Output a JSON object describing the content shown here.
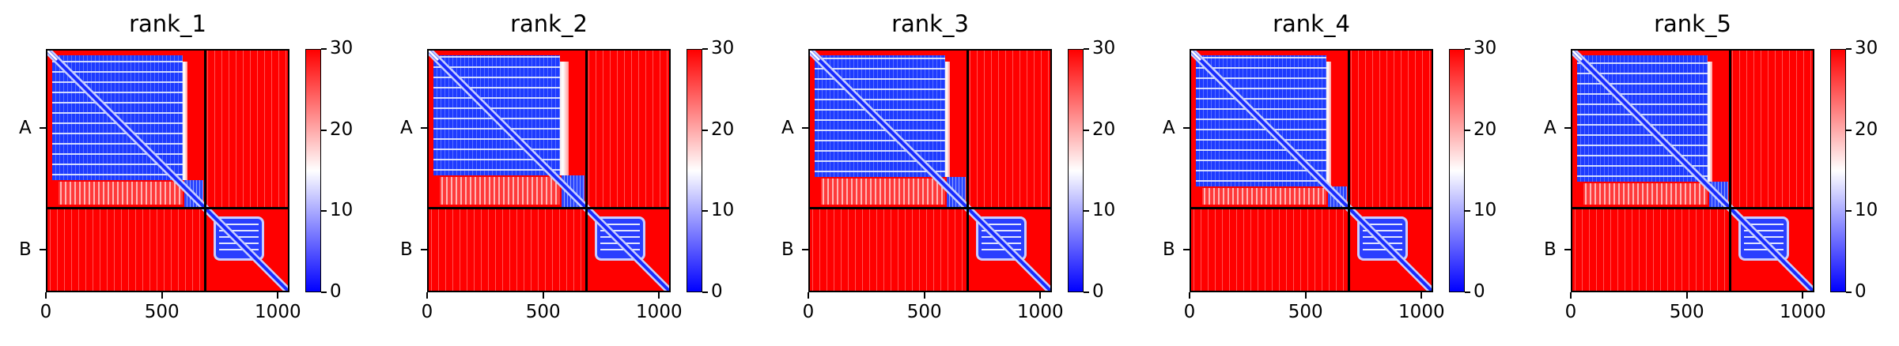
{
  "chart_data": [
    {
      "type": "heatmap",
      "title": "rank_1",
      "ytick_labels": [
        "A",
        "B"
      ],
      "xticks": [
        0,
        500,
        1000
      ],
      "xlim": [
        0,
        1050
      ],
      "chain_boundary": 680,
      "colorbar": {
        "ticks": [
          0,
          10,
          20,
          30
        ],
        "range": [
          0,
          30
        ],
        "colormap": "bwr"
      }
    },
    {
      "type": "heatmap",
      "title": "rank_2",
      "ytick_labels": [
        "A",
        "B"
      ],
      "xticks": [
        0,
        500,
        1000
      ],
      "xlim": [
        0,
        1050
      ],
      "chain_boundary": 680,
      "colorbar": {
        "ticks": [
          0,
          10,
          20,
          30
        ],
        "range": [
          0,
          30
        ],
        "colormap": "bwr"
      }
    },
    {
      "type": "heatmap",
      "title": "rank_3",
      "ytick_labels": [
        "A",
        "B"
      ],
      "xticks": [
        0,
        500,
        1000
      ],
      "xlim": [
        0,
        1050
      ],
      "chain_boundary": 680,
      "colorbar": {
        "ticks": [
          0,
          10,
          20,
          30
        ],
        "range": [
          0,
          30
        ],
        "colormap": "bwr"
      }
    },
    {
      "type": "heatmap",
      "title": "rank_4",
      "ytick_labels": [
        "A",
        "B"
      ],
      "xticks": [
        0,
        500,
        1000
      ],
      "xlim": [
        0,
        1050
      ],
      "chain_boundary": 680,
      "colorbar": {
        "ticks": [
          0,
          10,
          20,
          30
        ],
        "range": [
          0,
          30
        ],
        "colormap": "bwr"
      }
    },
    {
      "type": "heatmap",
      "title": "rank_5",
      "ytick_labels": [
        "A",
        "B"
      ],
      "xticks": [
        0,
        500,
        1000
      ],
      "xlim": [
        0,
        1050
      ],
      "chain_boundary": 680,
      "colorbar": {
        "ticks": [
          0,
          10,
          20,
          30
        ],
        "range": [
          0,
          30
        ],
        "colormap": "bwr"
      }
    }
  ],
  "colors": {
    "low": "#0000ff",
    "mid": "#ffffff",
    "high": "#ff0000",
    "axes": "#000000"
  }
}
